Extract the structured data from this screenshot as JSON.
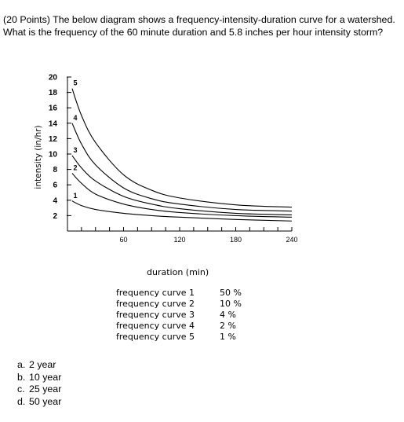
{
  "question": "(20 Points) The below diagram shows a frequency-intensity-duration curve for a watershed. What is the frequency of the 60 minute duration and 5.8 inches per hour intensity storm?",
  "chart_data": {
    "type": "line",
    "xlabel": "duration (min)",
    "ylabel": "intensity (in/hr)",
    "xlim": [
      0,
      240
    ],
    "ylim": [
      0,
      20
    ],
    "x_ticks": [
      60,
      120,
      180,
      240
    ],
    "y_ticks": [
      2,
      4,
      6,
      8,
      10,
      12,
      14,
      16,
      18,
      20
    ],
    "grid": false,
    "series": [
      {
        "name": "frequency curve 1",
        "label": "1",
        "frequency": "50 %",
        "x": [
          5,
          15,
          30,
          60,
          90,
          120,
          180,
          240
        ],
        "y": [
          3.9,
          3.3,
          2.8,
          2.3,
          2.0,
          1.8,
          1.5,
          1.3
        ]
      },
      {
        "name": "frequency curve 2",
        "label": "2",
        "frequency": "10 %",
        "x": [
          5,
          15,
          30,
          60,
          90,
          120,
          180,
          240
        ],
        "y": [
          7.5,
          6.2,
          4.8,
          3.5,
          2.8,
          2.4,
          2.0,
          1.8
        ]
      },
      {
        "name": "frequency curve 3",
        "label": "3",
        "frequency": "4 %",
        "x": [
          5,
          15,
          30,
          60,
          90,
          120,
          180,
          240
        ],
        "y": [
          9.8,
          8.2,
          6.5,
          4.5,
          3.5,
          2.9,
          2.3,
          2.1
        ]
      },
      {
        "name": "frequency curve 4",
        "label": "4",
        "frequency": "2 %",
        "x": [
          5,
          15,
          30,
          60,
          90,
          120,
          180,
          240
        ],
        "y": [
          14.0,
          11.3,
          8.6,
          5.6,
          4.2,
          3.5,
          2.8,
          2.6
        ]
      },
      {
        "name": "frequency curve 5",
        "label": "5",
        "frequency": "1 %",
        "x": [
          5,
          15,
          30,
          60,
          90,
          120,
          180,
          240
        ],
        "y": [
          18.5,
          15.0,
          11.5,
          7.3,
          5.3,
          4.3,
          3.4,
          3.1
        ]
      }
    ]
  },
  "options": [
    {
      "letter": "a.",
      "text": "2 year"
    },
    {
      "letter": "b.",
      "text": "10 year"
    },
    {
      "letter": "c.",
      "text": "25 year"
    },
    {
      "letter": "d.",
      "text": "50 year"
    }
  ]
}
